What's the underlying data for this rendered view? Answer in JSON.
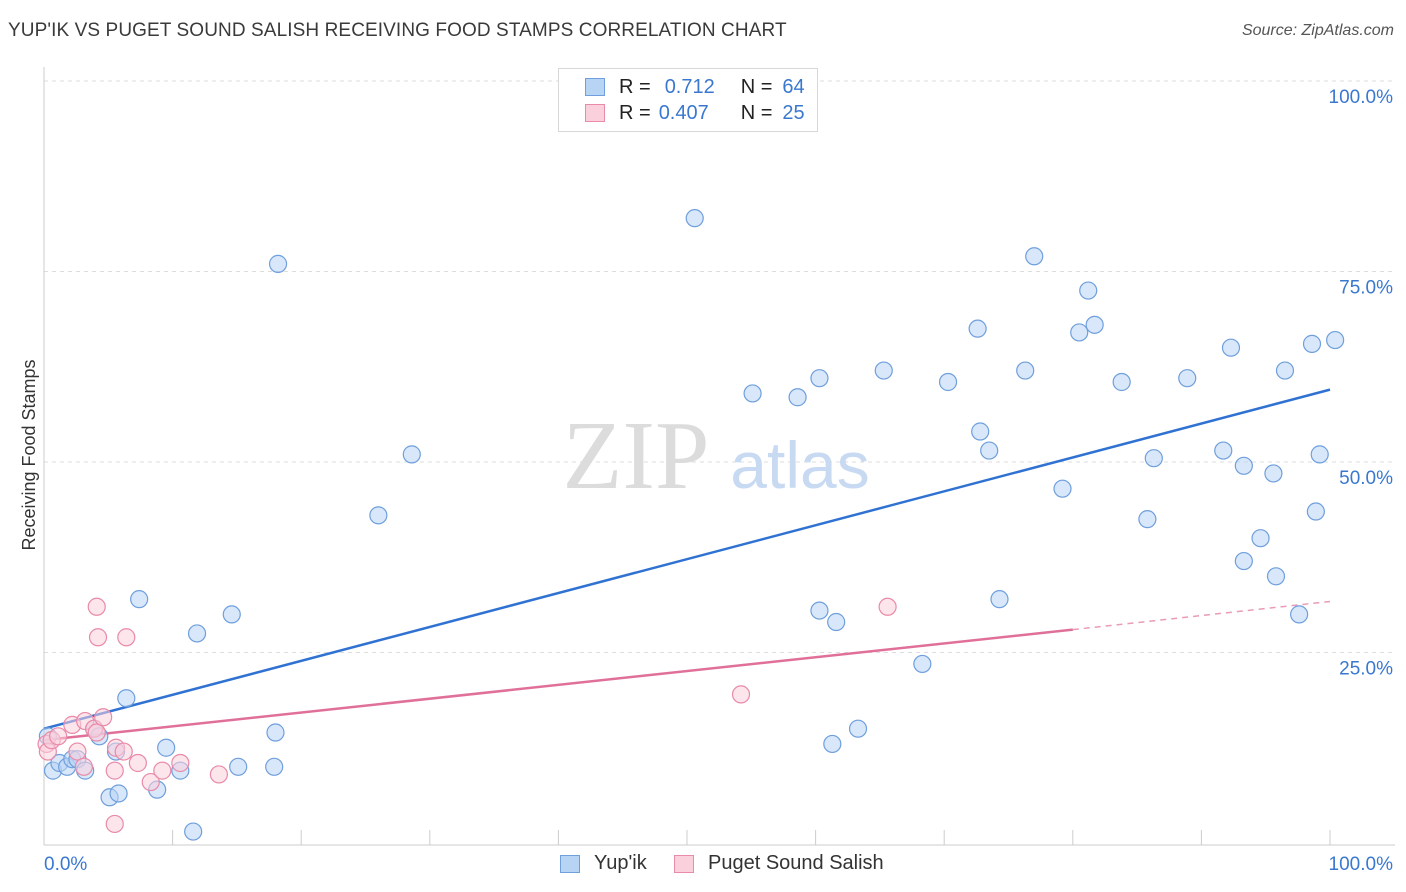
{
  "title": "YUP'IK VS PUGET SOUND SALISH RECEIVING FOOD STAMPS CORRELATION CHART",
  "source": "Source: ZipAtlas.com",
  "watermark": {
    "zip": "ZIP",
    "atlas": "atlas"
  },
  "legend": {
    "r_label": "R =",
    "n_label": "N =",
    "rows": [
      {
        "r": "0.712",
        "n": "64",
        "color": "#a8c8f0",
        "border": "#6f9fdc"
      },
      {
        "r": "0.407",
        "n": "25",
        "color": "#f8c0d2",
        "border": "#e88aa8"
      }
    ]
  },
  "bottom_legend": [
    {
      "label": "Yup'ik",
      "color": "#b8d4f4",
      "border": "#6f9fdc"
    },
    {
      "label": "Puget Sound Salish",
      "color": "#fbd0dd",
      "border": "#e88aa8"
    }
  ],
  "chart_data": {
    "type": "scatter",
    "title": "YUP'IK VS PUGET SOUND SALISH RECEIVING FOOD STAMPS CORRELATION CHART",
    "xlabel": "",
    "ylabel": "Receiving Food Stamps",
    "xlim": [
      0,
      100
    ],
    "ylim": [
      0,
      100
    ],
    "x_tick_labels": [
      "0.0%",
      "100.0%"
    ],
    "y_tick_labels": [
      "25.0%",
      "50.0%",
      "75.0%",
      "100.0%"
    ],
    "y_ticks": [
      25,
      50,
      75,
      100
    ],
    "grid": "horizontal dashed",
    "colors": {
      "yupik_fill": "#b8d4f4",
      "yupik_stroke": "#6f9fdc",
      "yupik_line": "#2f72d2",
      "salish_fill": "#fbd0dd",
      "salish_stroke": "#e88aa8",
      "salish_line": "#e0709a",
      "tick_text": "#3a78d0"
    },
    "series": [
      {
        "name": "Yup'ik",
        "trend": {
          "x0": 0,
          "y0": 15,
          "x1": 100,
          "y1": 59.5
        },
        "points": [
          [
            0.3,
            14
          ],
          [
            0.7,
            9.5
          ],
          [
            1.2,
            10.5
          ],
          [
            1.8,
            10
          ],
          [
            2.2,
            11
          ],
          [
            2.6,
            11
          ],
          [
            3.2,
            9.5
          ],
          [
            3.9,
            15
          ],
          [
            4.3,
            14
          ],
          [
            5.1,
            6
          ],
          [
            5.6,
            12
          ],
          [
            5.8,
            6.5
          ],
          [
            6.4,
            19
          ],
          [
            7.4,
            32
          ],
          [
            8.8,
            7
          ],
          [
            9.5,
            12.5
          ],
          [
            10.6,
            9.5
          ],
          [
            11.6,
            1.5
          ],
          [
            11.9,
            27.5
          ],
          [
            14.6,
            30
          ],
          [
            15.1,
            10
          ],
          [
            18,
            14.5
          ],
          [
            18.2,
            76
          ],
          [
            17.9,
            10
          ],
          [
            26,
            43
          ],
          [
            28.6,
            51
          ],
          [
            50.6,
            82
          ],
          [
            55.1,
            59
          ],
          [
            58.6,
            58.5
          ],
          [
            60.3,
            61
          ],
          [
            60.3,
            30.5
          ],
          [
            61.3,
            13
          ],
          [
            61.6,
            29
          ],
          [
            63.3,
            15
          ],
          [
            65.3,
            62
          ],
          [
            68.3,
            23.5
          ],
          [
            70.3,
            60.5
          ],
          [
            72.6,
            67.5
          ],
          [
            72.8,
            54
          ],
          [
            73.5,
            51.5
          ],
          [
            74.3,
            32
          ],
          [
            76.3,
            62
          ],
          [
            77,
            77
          ],
          [
            79.2,
            46.5
          ],
          [
            80.5,
            67
          ],
          [
            81.2,
            72.5
          ],
          [
            81.7,
            68
          ],
          [
            83.8,
            60.5
          ],
          [
            85.8,
            42.5
          ],
          [
            86.3,
            50.5
          ],
          [
            88.9,
            61
          ],
          [
            91.7,
            51.5
          ],
          [
            92.3,
            65
          ],
          [
            93.3,
            49.5
          ],
          [
            93.3,
            37
          ],
          [
            94.6,
            40
          ],
          [
            95.6,
            48.5
          ],
          [
            95.8,
            35
          ],
          [
            96.5,
            62
          ],
          [
            97.6,
            30
          ],
          [
            98.6,
            65.5
          ],
          [
            99.2,
            51
          ],
          [
            98.9,
            43.5
          ],
          [
            100.4,
            66
          ]
        ]
      },
      {
        "name": "Puget Sound Salish",
        "trend": {
          "x0": 0,
          "y0": 13.5,
          "x1": 80,
          "y1": 28,
          "x_dash_end": 100,
          "y_dash_end": 31.7
        },
        "points": [
          [
            0.2,
            13
          ],
          [
            0.3,
            12
          ],
          [
            0.6,
            13.5
          ],
          [
            1.1,
            14
          ],
          [
            2.2,
            15.5
          ],
          [
            2.6,
            12
          ],
          [
            3.1,
            10
          ],
          [
            3.2,
            16
          ],
          [
            3.9,
            15
          ],
          [
            4.1,
            14.5
          ],
          [
            4.1,
            31
          ],
          [
            4.2,
            27
          ],
          [
            4.6,
            16.5
          ],
          [
            5.5,
            9.5
          ],
          [
            5.6,
            12.5
          ],
          [
            6.2,
            12
          ],
          [
            6.4,
            27
          ],
          [
            7.3,
            10.5
          ],
          [
            8.3,
            8
          ],
          [
            9.2,
            9.5
          ],
          [
            10.6,
            10.5
          ],
          [
            13.6,
            9
          ],
          [
            5.5,
            2.5
          ],
          [
            54.2,
            19.5
          ],
          [
            65.6,
            31
          ]
        ]
      }
    ]
  }
}
